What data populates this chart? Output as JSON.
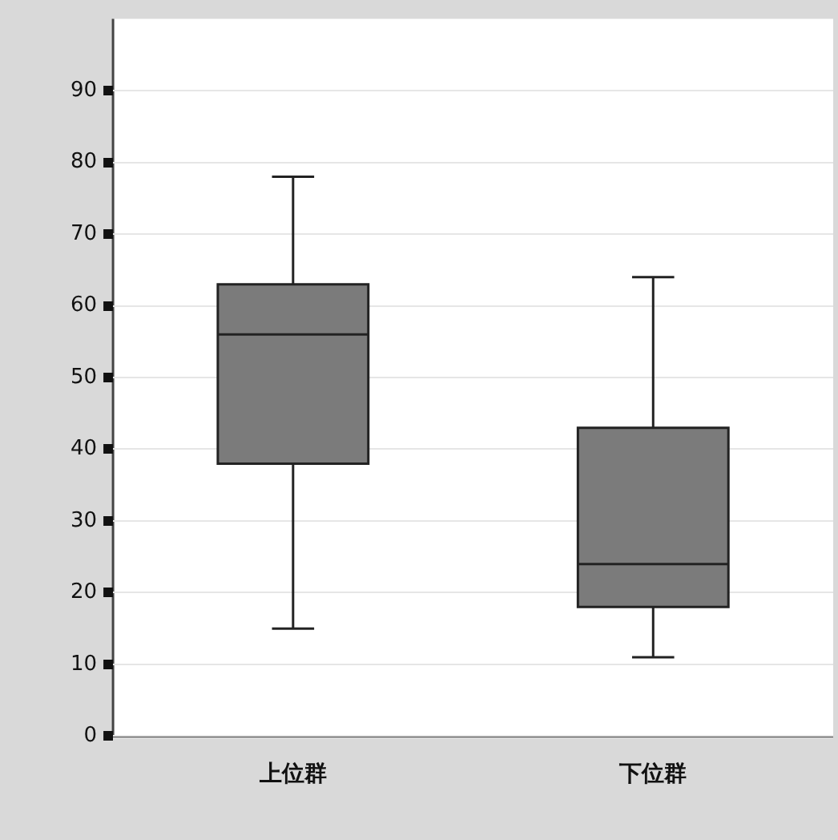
{
  "chart_data": {
    "type": "box",
    "categories": [
      "上位群",
      "下位群"
    ],
    "boxes": [
      {
        "low": 15,
        "q1": 38,
        "median": 56,
        "q3": 63,
        "high": 78
      },
      {
        "low": 11,
        "q1": 18,
        "median": 24,
        "q3": 43,
        "high": 64
      }
    ],
    "color": "#7b7b7b",
    "ylim": [
      0,
      100
    ],
    "yticks": [
      0,
      10,
      20,
      30,
      40,
      50,
      60,
      70,
      80,
      90
    ],
    "grid": "y",
    "legend": false
  }
}
